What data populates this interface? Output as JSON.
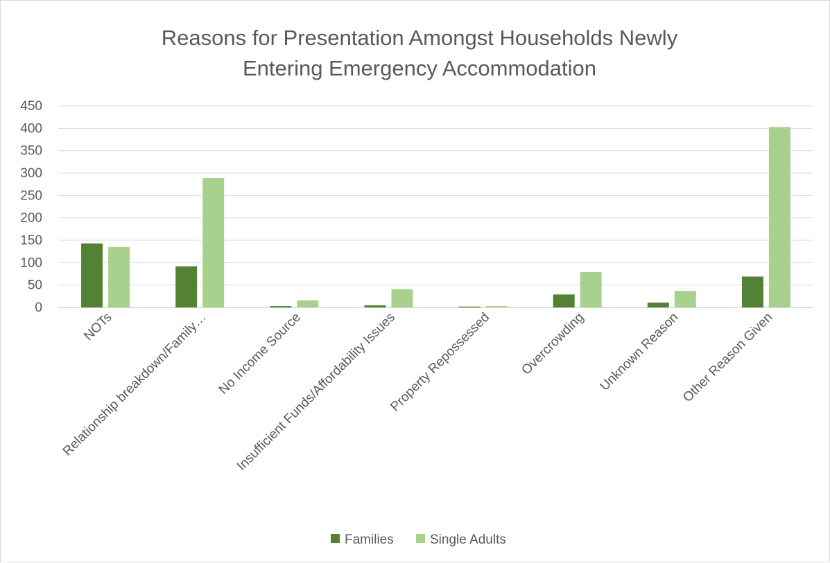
{
  "chart_data": {
    "type": "bar",
    "title_lines": [
      "Reasons for Presentation Amongst Households Newly",
      "Entering Emergency Accommodation"
    ],
    "categories": [
      "NOTs",
      "Relationship breakdown/Family…",
      "No Income Source",
      "Insufficient Funds/Affordability Issues",
      "Property Repossessed",
      "Overcrowding",
      "Unknown Reason",
      "Other Reason Given"
    ],
    "series": [
      {
        "name": "Families",
        "color": "#548235",
        "values": [
          143,
          92,
          3,
          5,
          2,
          29,
          11,
          69
        ]
      },
      {
        "name": "Single Adults",
        "color": "#a9d18e",
        "values": [
          135,
          289,
          16,
          41,
          3,
          79,
          37,
          403
        ]
      }
    ],
    "ylim": [
      0,
      450
    ],
    "yticks": [
      0,
      50,
      100,
      150,
      200,
      250,
      300,
      350,
      400,
      450
    ],
    "grid": true,
    "legend_position": "bottom"
  }
}
